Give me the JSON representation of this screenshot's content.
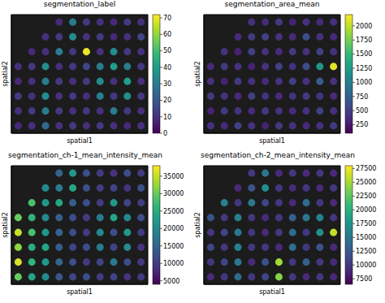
{
  "chart_data": [
    {
      "type": "scatter",
      "title": "segmentation_label",
      "x_label": "spatial1",
      "y_label": "spatial2",
      "tick_labels": false,
      "xlim": [
        0,
        10
      ],
      "ylim": [
        0,
        8
      ],
      "x": [
        0.5,
        1.5,
        2.5,
        3.5,
        4.5,
        5.5,
        6.5,
        7.5,
        8.5,
        9.5
      ],
      "y": [
        7.5,
        6.5,
        5.5,
        4.5,
        3.5,
        2.5,
        1.5,
        0.5
      ],
      "cells": [
        [
          null,
          null,
          null,
          8,
          30,
          12,
          10,
          8,
          12,
          10
        ],
        [
          null,
          null,
          10,
          12,
          35,
          10,
          12,
          8,
          10,
          15
        ],
        [
          null,
          8,
          10,
          30,
          12,
          70,
          10,
          35,
          12,
          10
        ],
        [
          10,
          12,
          35,
          10,
          12,
          15,
          30,
          40,
          30,
          12
        ],
        [
          8,
          10,
          30,
          12,
          10,
          12,
          35,
          10,
          40,
          10
        ],
        [
          12,
          10,
          35,
          10,
          12,
          10,
          30,
          12,
          35,
          12
        ],
        [
          10,
          12,
          30,
          12,
          10,
          12,
          10,
          30,
          12,
          10
        ],
        [
          8,
          10,
          25,
          10,
          12,
          10,
          12,
          10,
          8,
          10
        ]
      ],
      "colorbar": {
        "range": [
          0,
          72
        ],
        "ticks": [
          0,
          10,
          20,
          30,
          40,
          50,
          60,
          70
        ]
      }
    },
    {
      "type": "scatter",
      "title": "segmentation_area_mean",
      "x_label": "spatial1",
      "y_label": "spatial2",
      "tick_labels": false,
      "xlim": [
        0,
        10
      ],
      "ylim": [
        0,
        8
      ],
      "x": [
        0.5,
        1.5,
        2.5,
        3.5,
        4.5,
        5.5,
        6.5,
        7.5,
        8.5,
        9.5
      ],
      "y": [
        7.5,
        6.5,
        5.5,
        4.5,
        3.5,
        2.5,
        1.5,
        0.5
      ],
      "cells": [
        [
          null,
          null,
          null,
          400,
          350,
          450,
          300,
          400,
          350,
          400
        ],
        [
          null,
          null,
          350,
          450,
          500,
          400,
          350,
          600,
          400,
          350
        ],
        [
          null,
          400,
          300,
          500,
          400,
          350,
          450,
          400,
          500,
          400
        ],
        [
          350,
          450,
          400,
          300,
          400,
          500,
          400,
          600,
          1200,
          2100
        ],
        [
          400,
          300,
          450,
          400,
          350,
          400,
          500,
          400,
          700,
          400
        ],
        [
          450,
          400,
          350,
          500,
          400,
          350,
          400,
          450,
          400,
          350
        ],
        [
          300,
          450,
          400,
          350,
          450,
          400,
          350,
          400,
          500,
          400
        ],
        [
          400,
          350,
          500,
          400,
          300,
          450,
          400,
          350,
          400,
          450
        ]
      ],
      "colorbar": {
        "range": [
          100,
          2200
        ],
        "ticks": [
          250,
          500,
          750,
          1000,
          1250,
          1500,
          1750,
          2000
        ]
      }
    },
    {
      "type": "scatter",
      "title": "segmentation_ch-1_mean_intensity_mean",
      "x_label": "spatial1",
      "y_label": "spatial2",
      "tick_labels": false,
      "xlim": [
        0,
        10
      ],
      "ylim": [
        0,
        8
      ],
      "x": [
        0.5,
        1.5,
        2.5,
        3.5,
        4.5,
        5.5,
        6.5,
        7.5,
        8.5,
        9.5
      ],
      "y": [
        7.5,
        6.5,
        5.5,
        4.5,
        3.5,
        2.5,
        1.5,
        0.5
      ],
      "cells": [
        [
          null,
          null,
          null,
          15000,
          22000,
          12000,
          10000,
          9000,
          12000,
          10000
        ],
        [
          null,
          null,
          20000,
          18000,
          24000,
          12000,
          10000,
          11000,
          9000,
          12000
        ],
        [
          null,
          28000,
          22000,
          24000,
          14000,
          12000,
          10000,
          22000,
          11000,
          10000
        ],
        [
          30000,
          26000,
          20000,
          14000,
          12000,
          10000,
          18000,
          24000,
          20000,
          12000
        ],
        [
          35000,
          28000,
          22000,
          15000,
          12000,
          10000,
          20000,
          12000,
          22000,
          10000
        ],
        [
          32000,
          25000,
          24000,
          14000,
          11000,
          12000,
          18000,
          11000,
          20000,
          9000
        ],
        [
          36000,
          26000,
          22000,
          15000,
          12000,
          10000,
          11000,
          18000,
          12000,
          10000
        ],
        [
          30000,
          24000,
          20000,
          13000,
          11000,
          12000,
          10000,
          11000,
          9000,
          10000
        ]
      ],
      "colorbar": {
        "range": [
          4000,
          38000
        ],
        "ticks": [
          5000,
          10000,
          15000,
          20000,
          25000,
          30000,
          35000
        ]
      }
    },
    {
      "type": "scatter",
      "title": "segmentation_ch-2_mean_intensity_mean",
      "x_label": "spatial1",
      "y_label": "spatial2",
      "tick_labels": false,
      "xlim": [
        0,
        10
      ],
      "ylim": [
        0,
        8
      ],
      "x": [
        0.5,
        1.5,
        2.5,
        3.5,
        4.5,
        5.5,
        6.5,
        7.5,
        8.5,
        9.5
      ],
      "y": [
        7.5,
        6.5,
        5.5,
        4.5,
        3.5,
        2.5,
        1.5,
        0.5
      ],
      "cells": [
        [
          null,
          null,
          null,
          10000,
          15000,
          9000,
          10000,
          9000,
          10000,
          9000
        ],
        [
          null,
          null,
          9000,
          12000,
          17000,
          10000,
          9000,
          10000,
          9000,
          10000
        ],
        [
          null,
          16000,
          10000,
          15000,
          11000,
          10000,
          9000,
          14000,
          10000,
          9000
        ],
        [
          12000,
          10000,
          16000,
          10000,
          9000,
          10000,
          13000,
          15000,
          16000,
          10000
        ],
        [
          10000,
          11000,
          15000,
          10000,
          9000,
          10000,
          14000,
          10000,
          17000,
          26000
        ],
        [
          11000,
          10000,
          16000,
          10000,
          10000,
          9000,
          14000,
          10000,
          12000,
          9000
        ],
        [
          10000,
          11000,
          15000,
          9000,
          12000,
          25000,
          10000,
          13000,
          10000,
          9000
        ],
        [
          9000,
          10000,
          14000,
          10000,
          11000,
          24000,
          10000,
          9000,
          10000,
          9000
        ]
      ],
      "colorbar": {
        "range": [
          6500,
          28000
        ],
        "ticks": [
          7500,
          10000,
          12500,
          15000,
          17500,
          20000,
          22500,
          25000,
          27500
        ]
      }
    }
  ]
}
